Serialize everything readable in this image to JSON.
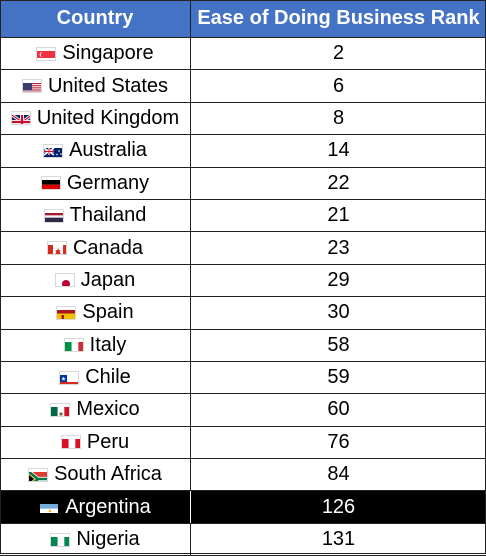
{
  "table": {
    "headers": {
      "country": "Country",
      "rank": "Ease of Doing Business Rank"
    },
    "rows": [
      {
        "country": "Singapore",
        "rank": "2",
        "flag": "singapore-flag-icon",
        "highlight": false
      },
      {
        "country": "United States",
        "rank": "6",
        "flag": "united-states-flag-icon",
        "highlight": false
      },
      {
        "country": "United Kingdom",
        "rank": "8",
        "flag": "united-kingdom-flag-icon",
        "highlight": false
      },
      {
        "country": "Australia",
        "rank": "14",
        "flag": "australia-flag-icon",
        "highlight": false
      },
      {
        "country": "Germany",
        "rank": "22",
        "flag": "germany-flag-icon",
        "highlight": false
      },
      {
        "country": "Thailand",
        "rank": "21",
        "flag": "thailand-flag-icon",
        "highlight": false
      },
      {
        "country": "Canada",
        "rank": "23",
        "flag": "canada-flag-icon",
        "highlight": false
      },
      {
        "country": "Japan",
        "rank": "29",
        "flag": "japan-flag-icon",
        "highlight": false
      },
      {
        "country": "Spain",
        "rank": "30",
        "flag": "spain-flag-icon",
        "highlight": false
      },
      {
        "country": "Italy",
        "rank": "58",
        "flag": "italy-flag-icon",
        "highlight": false
      },
      {
        "country": "Chile",
        "rank": "59",
        "flag": "chile-flag-icon",
        "highlight": false
      },
      {
        "country": "Mexico",
        "rank": "60",
        "flag": "mexico-flag-icon",
        "highlight": false
      },
      {
        "country": "Peru",
        "rank": "76",
        "flag": "peru-flag-icon",
        "highlight": false
      },
      {
        "country": "South Africa",
        "rank": "84",
        "flag": "south-africa-flag-icon",
        "highlight": false
      },
      {
        "country": "Argentina",
        "rank": "126",
        "flag": "argentina-flag-icon",
        "highlight": true
      },
      {
        "country": "Nigeria",
        "rank": "131",
        "flag": "nigeria-flag-icon",
        "highlight": false
      }
    ]
  },
  "colors": {
    "header_bg": "#4472c4",
    "highlight_bg": "#000000"
  }
}
